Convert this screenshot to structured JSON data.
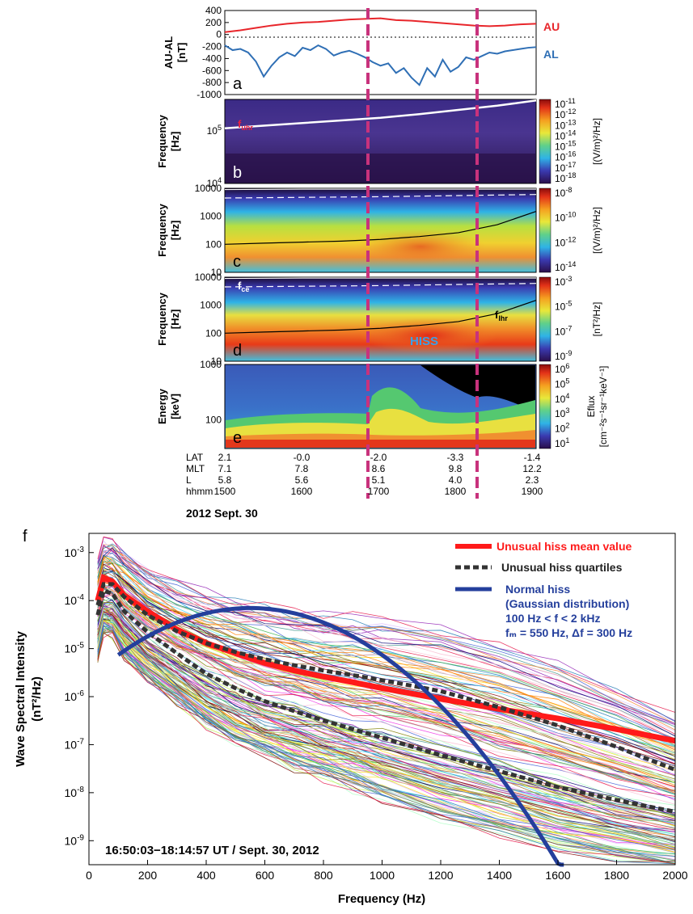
{
  "colors": {
    "au": "#e8262b",
    "al": "#2f6fb5",
    "dash": "#c8327c",
    "mean": "#ff1a1a",
    "quart": "#333333",
    "gauss": "#243f9c"
  },
  "panel_a": {
    "ylabel": "AU-AL",
    "ylabel_unit": "[nT]",
    "letter": "a",
    "ticks": [
      "400",
      "200",
      "0",
      "-200",
      "-400",
      "-600",
      "-800",
      "-1000"
    ],
    "au_label": "AU",
    "al_label": "AL"
  },
  "panel_b": {
    "ylabel": "Frequency",
    "ylabel_unit": "[Hz]",
    "letter": "b",
    "ticks": [
      {
        "base": "10",
        "exp": "5"
      },
      {
        "base": "10",
        "exp": "4"
      }
    ],
    "cbar_ticks": [
      {
        "base": "10",
        "exp": "-11"
      },
      {
        "base": "10",
        "exp": "-12"
      },
      {
        "base": "10",
        "exp": "-13"
      },
      {
        "base": "10",
        "exp": "-14"
      },
      {
        "base": "10",
        "exp": "-15"
      },
      {
        "base": "10",
        "exp": "-16"
      },
      {
        "base": "10",
        "exp": "-17"
      },
      {
        "base": "10",
        "exp": "-18"
      }
    ],
    "cbar_label": "[(V/m)²/Hz]",
    "annot_main": "f",
    "annot_sub": "uhr"
  },
  "panel_c": {
    "ylabel": "Frequency",
    "ylabel_unit": "[Hz]",
    "letter": "c",
    "ticks": [
      "10000",
      "1000",
      "100",
      "10"
    ],
    "cbar_ticks": [
      {
        "base": "10",
        "exp": "-8"
      },
      {
        "base": "10",
        "exp": "-10"
      },
      {
        "base": "10",
        "exp": "-12"
      },
      {
        "base": "10",
        "exp": "-14"
      }
    ],
    "cbar_label": "[(V/m)²/Hz]"
  },
  "panel_d": {
    "ylabel": "Frequency",
    "ylabel_unit": "[Hz]",
    "letter": "d",
    "ticks": [
      "10000",
      "1000",
      "100",
      "10"
    ],
    "cbar_ticks": [
      {
        "base": "10",
        "exp": "-3"
      },
      {
        "base": "10",
        "exp": "-5"
      },
      {
        "base": "10",
        "exp": "-7"
      },
      {
        "base": "10",
        "exp": "-9"
      }
    ],
    "cbar_label": "[nT²/Hz]",
    "fce_main": "f",
    "fce_sub": "ce",
    "flhr_main": "f",
    "flhr_sub": "lhr",
    "hiss": "HISS"
  },
  "panel_e": {
    "ylabel": "Energy",
    "ylabel_unit": "[keV]",
    "letter": "e",
    "ticks": [
      "1000",
      "100"
    ],
    "cbar_ticks": [
      {
        "base": "10",
        "exp": "6"
      },
      {
        "base": "10",
        "exp": "5"
      },
      {
        "base": "10",
        "exp": "4"
      },
      {
        "base": "10",
        "exp": "3"
      },
      {
        "base": "10",
        "exp": "2"
      },
      {
        "base": "10",
        "exp": "1"
      }
    ],
    "cbar_label": "Eflux",
    "cbar_label2": "[cm⁻²s⁻¹sr⁻¹keV⁻¹]"
  },
  "ephemeris": {
    "rows": [
      {
        "name": "LAT",
        "values": [
          "2.1",
          "-0.0",
          "-2.0",
          "-3.3",
          "-1.4"
        ]
      },
      {
        "name": "MLT",
        "values": [
          "7.1",
          "7.8",
          "8.6",
          "9.8",
          "12.2"
        ]
      },
      {
        "name": "L",
        "values": [
          "5.8",
          "5.6",
          "5.1",
          "4.0",
          "2.3"
        ]
      },
      {
        "name": "hhmm",
        "values": [
          "1500",
          "1600",
          "1700",
          "1800",
          "1900"
        ]
      }
    ],
    "date": "2012 Sept. 30"
  },
  "chart_data": [
    {
      "type": "line",
      "panel": "a",
      "x_unit": "UT hour",
      "xlim": [
        15,
        19
      ],
      "ylim": [
        -1000,
        400
      ],
      "series": [
        {
          "name": "AU",
          "x": [
            15.0,
            15.2,
            15.4,
            15.6,
            15.8,
            16.0,
            16.2,
            16.4,
            16.6,
            16.8,
            17.0,
            17.2,
            17.4,
            17.6,
            17.8,
            18.0,
            18.2,
            18.4,
            18.6,
            18.8,
            19.0
          ],
          "values": [
            40,
            70,
            110,
            150,
            180,
            200,
            210,
            230,
            250,
            260,
            270,
            240,
            230,
            210,
            190,
            170,
            150,
            140,
            150,
            170,
            180
          ]
        },
        {
          "name": "AL",
          "x": [
            15.0,
            15.1,
            15.2,
            15.3,
            15.4,
            15.5,
            15.6,
            15.7,
            15.8,
            15.9,
            16.0,
            16.1,
            16.2,
            16.3,
            16.4,
            16.5,
            16.6,
            16.7,
            16.8,
            16.9,
            17.0,
            17.1,
            17.2,
            17.3,
            17.4,
            17.5,
            17.6,
            17.7,
            17.8,
            17.9,
            18.0,
            18.1,
            18.2,
            18.3,
            18.4,
            18.5,
            18.6,
            18.7,
            18.8,
            18.9,
            19.0
          ],
          "values": [
            -180,
            -260,
            -240,
            -300,
            -450,
            -700,
            -520,
            -380,
            -300,
            -360,
            -220,
            -260,
            -180,
            -240,
            -350,
            -300,
            -270,
            -320,
            -380,
            -460,
            -520,
            -480,
            -640,
            -560,
            -720,
            -840,
            -560,
            -700,
            -420,
            -620,
            -540,
            -380,
            -420,
            -360,
            -300,
            -320,
            -280,
            -260,
            -240,
            -220,
            -210
          ]
        }
      ],
      "reference_line": 0
    },
    {
      "type": "heatmap",
      "panel": "b",
      "ylim_log": [
        4,
        5.6
      ],
      "overlay_line_name": "f_uhr",
      "overlay_x": [
        15.0,
        15.5,
        16.0,
        16.5,
        17.0,
        17.5,
        18.0,
        18.5,
        19.0
      ],
      "overlay_log10_freq": [
        5.05,
        5.1,
        5.15,
        5.2,
        5.25,
        5.32,
        5.4,
        5.48,
        5.58
      ]
    },
    {
      "type": "heatmap",
      "panel": "c",
      "ylim": [
        10,
        10000
      ],
      "fce_x": [
        15.0,
        16.0,
        17.0,
        18.0,
        19.0
      ],
      "fce_hz": [
        9000,
        9500,
        10000,
        11000,
        12000
      ],
      "flhr_x": [
        15.0,
        15.5,
        16.0,
        16.5,
        17.0,
        17.5,
        18.0,
        18.5,
        19.0
      ],
      "flhr_hz": [
        100,
        110,
        120,
        130,
        150,
        190,
        260,
        500,
        1500
      ]
    },
    {
      "type": "heatmap",
      "panel": "d",
      "ylim": [
        10,
        10000
      ],
      "fce_x": [
        15.0,
        16.0,
        17.0,
        18.0,
        19.0
      ],
      "fce_hz": [
        9000,
        9500,
        10000,
        11000,
        12000
      ],
      "flhr_x": [
        15.0,
        15.5,
        16.0,
        16.5,
        17.0,
        17.5,
        18.0,
        18.5,
        19.0
      ],
      "flhr_hz": [
        100,
        110,
        120,
        130,
        150,
        190,
        260,
        500,
        1500
      ]
    },
    {
      "type": "heatmap",
      "panel": "e",
      "ylim": [
        30,
        1000
      ]
    },
    {
      "type": "line",
      "panel": "f",
      "xlabel": "Frequency (Hz)",
      "ylabel": "Wave Spectral Intensity",
      "ylabel2": "(nT²/Hz)",
      "letter": "f",
      "xlim": [
        0,
        2000
      ],
      "ylim_log10": [
        -9.5,
        -2.6
      ],
      "x_ticks": [
        "0",
        "200",
        "400",
        "600",
        "800",
        "1000",
        "1200",
        "1400",
        "1600",
        "1800",
        "2000"
      ],
      "y_ticks": [
        {
          "base": "10",
          "exp": "-3"
        },
        {
          "base": "10",
          "exp": "-4"
        },
        {
          "base": "10",
          "exp": "-5"
        },
        {
          "base": "10",
          "exp": "-6"
        },
        {
          "base": "10",
          "exp": "-7"
        },
        {
          "base": "10",
          "exp": "-8"
        },
        {
          "base": "10",
          "exp": "-9"
        }
      ],
      "time_label": "16:50:03−18:14:57 UT / Sept. 30, 2012",
      "legend": {
        "mean": "Unusual hiss mean value",
        "quart": "Unusual hiss quartiles",
        "gauss": "Normal hiss",
        "gauss2": "(Gaussian distribution)",
        "gauss3": "100 Hz < f < 2 kHz",
        "gauss4": "fₘ = 550 Hz, Δf = 300 Hz"
      },
      "series": [
        {
          "name": "Unusual hiss mean value",
          "x": [
            30,
            50,
            80,
            120,
            200,
            300,
            400,
            500,
            600,
            700,
            800,
            900,
            1000,
            1200,
            1400,
            1600,
            1800,
            2000
          ],
          "values": [
            0.0001,
            0.0003,
            0.00025,
            0.00013,
            6e-05,
            2.5e-05,
            1.3e-05,
            8e-06,
            5e-06,
            3.5e-06,
            2.6e-06,
            2e-06,
            1.5e-06,
            9e-07,
            5.5e-07,
            3.5e-07,
            2.1e-07,
            1.2e-07
          ]
        },
        {
          "name": "Unusual hiss quartiles",
          "x": [
            30,
            50,
            80,
            120,
            200,
            300,
            400,
            500,
            600,
            700,
            800,
            900,
            1000,
            1200,
            1400,
            1600,
            1800,
            2000
          ],
          "values": [
            8e-05,
            0.00022,
            0.00022,
            0.00012,
            5e-05,
            2.3e-05,
            1.3e-05,
            8.5e-06,
            6e-06,
            4.5e-06,
            3.5e-06,
            2.8e-06,
            2.2e-06,
            1.3e-06,
            6e-07,
            2.5e-07,
            9e-08,
            3e-08
          ]
        },
        {
          "name": "Unusual hiss quartiles",
          "x": [
            30,
            50,
            80,
            120,
            200,
            300,
            400,
            500,
            600,
            700,
            800,
            900,
            1000,
            1200,
            1400,
            1600,
            1800,
            2000
          ],
          "values": [
            5e-05,
            0.00016,
            0.00014,
            6e-05,
            2.2e-05,
            8e-06,
            3e-06,
            1.5e-06,
            8e-07,
            5e-07,
            3.2e-07,
            2.1e-07,
            1.4e-07,
            6e-08,
            2.8e-08,
            1.3e-08,
            7e-09,
            4e-09
          ]
        },
        {
          "name": "Normal hiss",
          "model": "gaussian",
          "fm": 550,
          "df": 300,
          "peak": 7e-05,
          "x_range": [
            100,
            1620
          ]
        }
      ]
    }
  ]
}
